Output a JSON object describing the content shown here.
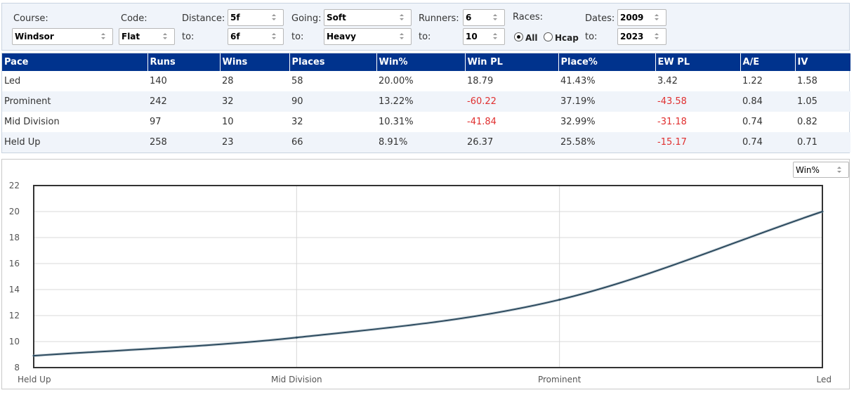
{
  "filters": {
    "course": {
      "label": "Course:",
      "value": "Windsor"
    },
    "code": {
      "label": "Code:",
      "value": "Flat"
    },
    "distance": {
      "label": "Distance:",
      "from": "5f",
      "to_label": "to:",
      "to": "6f"
    },
    "going": {
      "label": "Going:",
      "from": "Soft",
      "to_label": "to:",
      "to": "Heavy"
    },
    "runners": {
      "label": "Runners:",
      "from": "6",
      "to_label": "to:",
      "to": "10"
    },
    "races": {
      "label": "Races:",
      "options": [
        "All",
        "Hcap"
      ],
      "selected": "All"
    },
    "dates": {
      "label": "Dates:",
      "from": "2009",
      "to_label": "to:",
      "to": "2023"
    }
  },
  "table": {
    "headers": [
      "Pace",
      "Runs",
      "Wins",
      "Places",
      "Win%",
      "Win PL",
      "Place%",
      "EW PL",
      "A/E",
      "IV"
    ],
    "rows": [
      [
        "Led",
        "140",
        "28",
        "58",
        "20.00%",
        "18.79",
        "41.43%",
        "3.42",
        "1.22",
        "1.58"
      ],
      [
        "Prominent",
        "242",
        "32",
        "90",
        "13.22%",
        "-60.22",
        "37.19%",
        "-43.58",
        "0.84",
        "1.05"
      ],
      [
        "Mid Division",
        "97",
        "10",
        "32",
        "10.31%",
        "-41.84",
        "32.99%",
        "-31.18",
        "0.74",
        "0.82"
      ],
      [
        "Held Up",
        "258",
        "23",
        "66",
        "8.91%",
        "26.37",
        "25.58%",
        "-15.17",
        "0.74",
        "0.71"
      ]
    ]
  },
  "chart_selector": {
    "value": "Win%"
  },
  "chart_data": {
    "type": "line",
    "categories": [
      "Held Up",
      "Mid Division",
      "Prominent",
      "Led"
    ],
    "series": [
      {
        "values": [
          8.91,
          10.31,
          13.22,
          20.0
        ]
      }
    ],
    "ylim": [
      8,
      22
    ],
    "yticks": [
      8,
      10,
      12,
      14,
      16,
      18,
      20,
      22
    ],
    "grid": true,
    "line_color": "#2c4a5e"
  }
}
